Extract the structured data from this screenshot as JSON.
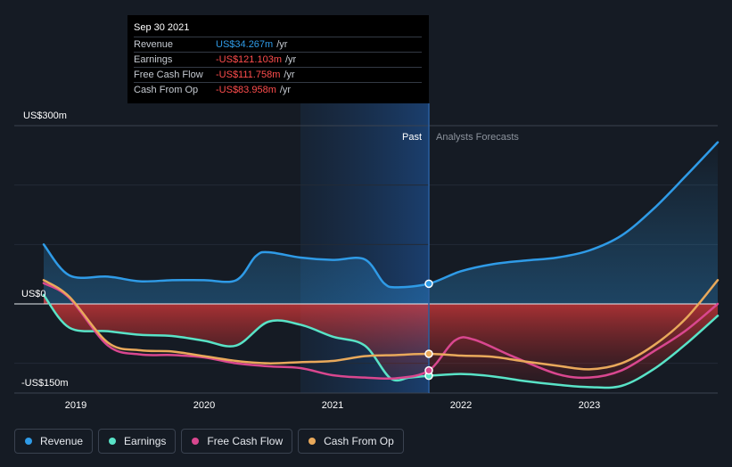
{
  "tooltip": {
    "date": "Sep 30 2021",
    "rows": [
      {
        "label": "Revenue",
        "value": "US$34.267m",
        "unit": "/yr",
        "color": "#2f9be7"
      },
      {
        "label": "Earnings",
        "value": "-US$121.103m",
        "unit": "/yr",
        "color": "#ff4d4d"
      },
      {
        "label": "Free Cash Flow",
        "value": "-US$111.758m",
        "unit": "/yr",
        "color": "#ff4d4d"
      },
      {
        "label": "Cash From Op",
        "value": "-US$83.958m",
        "unit": "/yr",
        "color": "#ff4d4d"
      }
    ]
  },
  "legend": [
    {
      "label": "Revenue",
      "color": "#2f9be7"
    },
    {
      "label": "Earnings",
      "color": "#59e3c7"
    },
    {
      "label": "Free Cash Flow",
      "color": "#d9478f"
    },
    {
      "label": "Cash From Op",
      "color": "#e9a95b"
    }
  ],
  "chart_data": {
    "type": "line",
    "title": "",
    "ylabel": "",
    "xlabel": "",
    "y_tick_labels": [
      "US$300m",
      "US$0",
      "-US$150m"
    ],
    "y_ticks": [
      300,
      0,
      -150
    ],
    "ylim": [
      -160,
      300
    ],
    "xlim": [
      2018.75,
      2024.0
    ],
    "x_ticks": [
      2019,
      2020,
      2021,
      2022,
      2023
    ],
    "x_tick_labels": [
      "2019",
      "2020",
      "2021",
      "2022",
      "2023"
    ],
    "past_label": "Past",
    "forecast_label": "Analysts Forecasts",
    "highlight_range": [
      2020.75,
      2021.75
    ],
    "divider_x": 2021.75,
    "marker_x": 2021.75,
    "series": [
      {
        "name": "Revenue",
        "color": "#2f9be7",
        "x": [
          2018.75,
          2018.95,
          2019.25,
          2019.5,
          2019.75,
          2020.0,
          2020.25,
          2020.4,
          2020.5,
          2020.75,
          2021.0,
          2021.25,
          2021.4,
          2021.5,
          2021.75,
          2022.0,
          2022.25,
          2022.5,
          2022.75,
          2023.0,
          2023.25,
          2023.5,
          2023.75,
          2024.0
        ],
        "y": [
          100,
          48,
          46,
          38,
          40,
          40,
          40,
          80,
          87,
          78,
          74,
          75,
          35,
          28,
          34,
          55,
          67,
          73,
          78,
          90,
          115,
          160,
          215,
          272
        ]
      },
      {
        "name": "Earnings",
        "color": "#59e3c7",
        "x": [
          2018.75,
          2018.95,
          2019.25,
          2019.5,
          2019.75,
          2020.0,
          2020.25,
          2020.5,
          2020.75,
          2021.0,
          2021.25,
          2021.45,
          2021.6,
          2021.75,
          2022.0,
          2022.25,
          2022.5,
          2022.75,
          2023.0,
          2023.25,
          2023.5,
          2023.75,
          2024.0
        ],
        "y": [
          15,
          -40,
          -46,
          -52,
          -54,
          -62,
          -70,
          -30,
          -35,
          -55,
          -70,
          -125,
          -124,
          -121,
          -118,
          -122,
          -130,
          -136,
          -140,
          -138,
          -110,
          -68,
          -20
        ]
      },
      {
        "name": "Free Cash Flow",
        "color": "#d9478f",
        "x": [
          2018.75,
          2018.95,
          2019.25,
          2019.5,
          2019.75,
          2020.0,
          2020.25,
          2020.5,
          2020.75,
          2021.0,
          2021.25,
          2021.5,
          2021.75,
          2021.95,
          2022.1,
          2022.4,
          2022.75,
          2023.0,
          2023.25,
          2023.5,
          2023.75,
          2024.0
        ],
        "y": [
          35,
          10,
          -70,
          -85,
          -86,
          -90,
          -100,
          -105,
          -108,
          -120,
          -124,
          -125,
          -112,
          -62,
          -60,
          -88,
          -118,
          -124,
          -112,
          -80,
          -45,
          0
        ]
      },
      {
        "name": "Cash From Op",
        "color": "#e9a95b",
        "x": [
          2018.75,
          2018.95,
          2019.25,
          2019.5,
          2019.75,
          2020.0,
          2020.25,
          2020.5,
          2020.75,
          2021.0,
          2021.25,
          2021.5,
          2021.75,
          2022.0,
          2022.25,
          2022.5,
          2022.75,
          2023.0,
          2023.25,
          2023.5,
          2023.75,
          2024.0
        ],
        "y": [
          40,
          12,
          -65,
          -78,
          -80,
          -88,
          -96,
          -100,
          -98,
          -96,
          -88,
          -86,
          -84,
          -87,
          -89,
          -97,
          -104,
          -110,
          -100,
          -70,
          -25,
          40
        ]
      }
    ]
  }
}
